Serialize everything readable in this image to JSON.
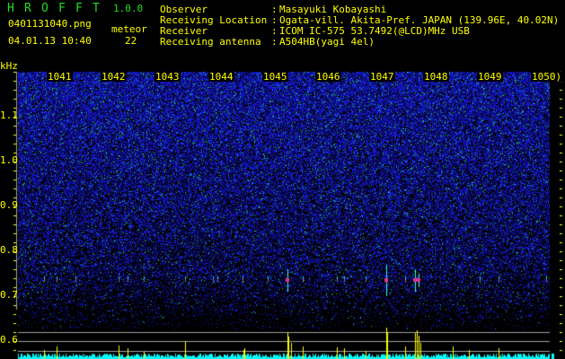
{
  "app": {
    "title_letters": [
      "H",
      "R",
      "O",
      "F",
      "F",
      "T"
    ],
    "version": "1.0.0"
  },
  "file": {
    "name": "0401131040.png",
    "datetime": "04.01.13 10:40"
  },
  "meteor": {
    "label": "meteor",
    "count": "22"
  },
  "info": [
    {
      "label": "Observer",
      "value": "Masayuki Kobayashi"
    },
    {
      "label": "Receiving Location",
      "value": "Ogata-vill. Akita-Pref. JAPAN (139.96E, 40.02N)"
    },
    {
      "label": "Receiver",
      "value": "ICOM IC-575 53.7492(@LCD)MHz USB"
    },
    {
      "label": "Receiving antenna",
      "value": "A504HB(yagi 4el)"
    }
  ],
  "axis": {
    "unit": "kHz",
    "freq_labels": [
      "1041",
      "1042",
      "1043",
      "1044",
      "1045",
      "1046",
      "1047",
      "1048",
      "1049",
      "1050)"
    ],
    "y_labels": [
      "1.1",
      "1.0",
      "0.9",
      "0.8",
      "0.7",
      "0.6"
    ]
  },
  "colors": {
    "text": "#ffff00",
    "title": "#22dd22",
    "noise": "#2020e0",
    "histogram": "#00ffff",
    "spike": "#ffff00",
    "grid": "#a0a0a0"
  }
}
